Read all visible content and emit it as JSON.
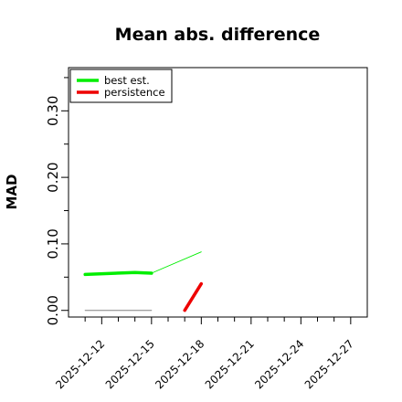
{
  "chart_data": {
    "type": "line",
    "title": "Mean abs. difference",
    "xlabel": "",
    "ylabel": "MAD",
    "x_ticks": [
      "2025-12-12",
      "2025-12-15",
      "2025-12-18",
      "2025-12-21",
      "2025-12-24",
      "2025-12-27"
    ],
    "y_ticks": [
      "0.00",
      "0.10",
      "0.20",
      "0.30"
    ],
    "y_minor_step": 0.05,
    "xlim": [
      "2025-12-10",
      "2025-12-28"
    ],
    "ylim": [
      -0.01,
      0.365
    ],
    "grid": false,
    "legend_position": "top-left",
    "series": [
      {
        "name": "best est.",
        "color": "#00ee00",
        "segments": [
          {
            "points": [
              [
                "2025-12-11",
                0.054
              ],
              [
                "2025-12-14",
                0.057
              ],
              [
                "2025-12-15",
                0.056
              ]
            ],
            "weight": "thick"
          },
          {
            "points": [
              [
                "2025-12-15",
                0.056
              ],
              [
                "2025-12-18",
                0.088
              ]
            ],
            "weight": "thin"
          }
        ]
      },
      {
        "name": "persistence",
        "color": "#ee0000",
        "segments": [
          {
            "points": [
              [
                "2025-12-17",
                0.0
              ],
              [
                "2025-12-18",
                0.04
              ]
            ],
            "weight": "thick"
          }
        ]
      },
      {
        "name": "",
        "color": "#808080",
        "segments": [
          {
            "points": [
              [
                "2025-12-11",
                0.0
              ],
              [
                "2025-12-15",
                0.0
              ]
            ],
            "weight": "hairline"
          }
        ]
      }
    ]
  }
}
